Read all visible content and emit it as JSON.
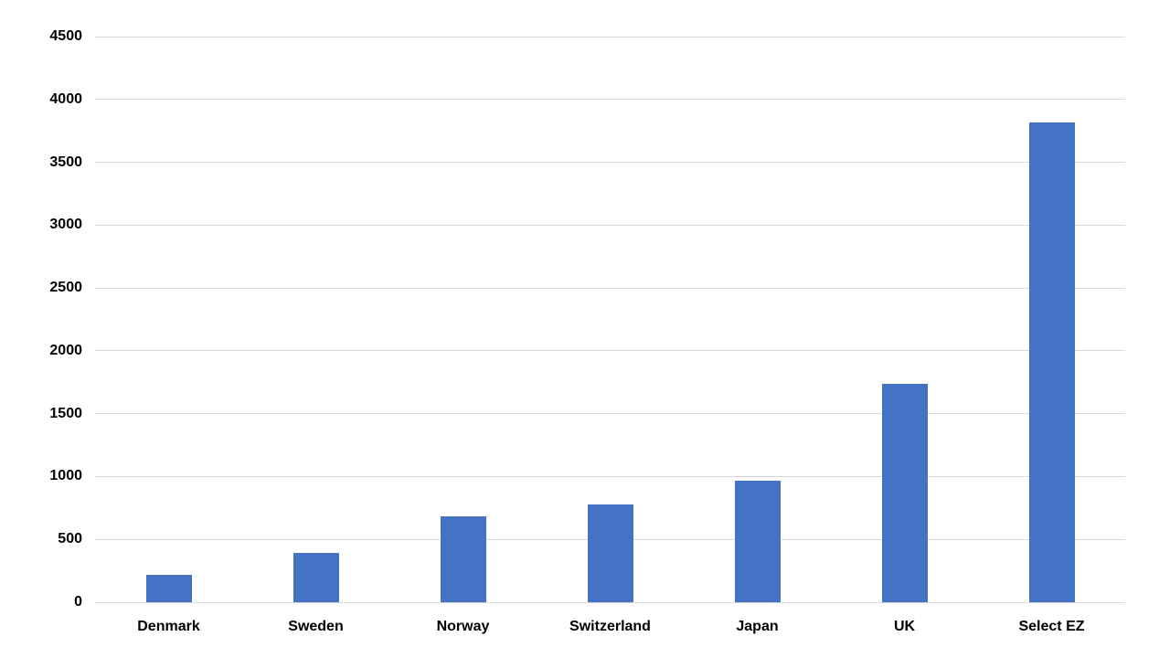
{
  "chart_data": {
    "type": "bar",
    "title": "",
    "xlabel": "",
    "ylabel": "",
    "categories": [
      "Denmark",
      "Sweden",
      "Norway",
      "Switzerland",
      "Japan",
      "UK",
      "Select EZ"
    ],
    "values": [
      220,
      390,
      680,
      780,
      970,
      1740,
      3820
    ],
    "ylim": [
      0,
      4500
    ],
    "ytick_step": 500,
    "ytick_labels": [
      "0",
      "500",
      "1000",
      "1500",
      "2000",
      "2500",
      "3000",
      "3500",
      "4000",
      "4500"
    ],
    "grid": true,
    "legend": null,
    "colors": {
      "bar": "#4472C4",
      "gridline": "#D9D9D9",
      "axis_line": "#D9D9D9",
      "tick_label": "#000000",
      "background": "#FFFFFF"
    }
  }
}
